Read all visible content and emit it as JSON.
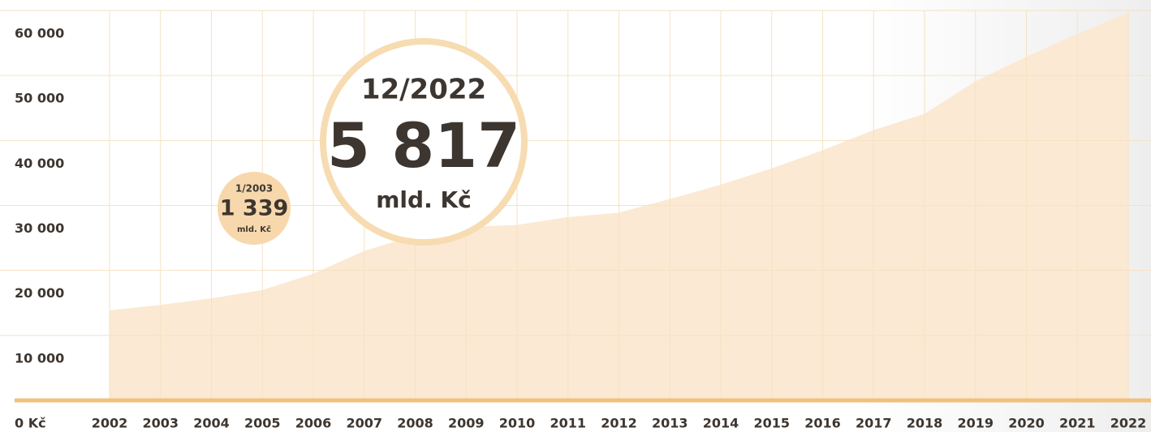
{
  "chart_data": {
    "type": "area",
    "x": [
      2002,
      2003,
      2004,
      2005,
      2006,
      2007,
      2008,
      2009,
      2010,
      2011,
      2012,
      2013,
      2014,
      2015,
      2016,
      2017,
      2018,
      2019,
      2020,
      2021,
      2022
    ],
    "values": [
      13850,
      14700,
      15700,
      17000,
      19500,
      23000,
      25400,
      26700,
      27000,
      28200,
      28900,
      31000,
      33200,
      35700,
      38500,
      41600,
      44100,
      49100,
      52900,
      56400,
      59700
    ],
    "color": "#fbe9d3",
    "xlim": [
      2002,
      2022
    ],
    "xticks": [
      2002,
      2003,
      2004,
      2005,
      2006,
      2007,
      2008,
      2009,
      2010,
      2011,
      2012,
      2013,
      2014,
      2015,
      2016,
      2017,
      2018,
      2019,
      2020,
      2021,
      2022
    ],
    "ylim": [
      0,
      60000
    ],
    "yticks": [
      {
        "value": 0,
        "label": "0 Kč"
      },
      {
        "value": 10000,
        "label": "10 000"
      },
      {
        "value": 20000,
        "label": "20 000"
      },
      {
        "value": 30000,
        "label": "30 000"
      },
      {
        "value": 40000,
        "label": "40 000"
      },
      {
        "value": 50000,
        "label": "50 000"
      },
      {
        "value": 60000,
        "label": "60 000"
      }
    ],
    "grid": true,
    "annotations": [
      {
        "date": "12/2022",
        "amount": "5 817",
        "unit": "mld. Kč"
      },
      {
        "date": "1/2003",
        "amount": "1 339",
        "unit": "mld. Kč"
      }
    ]
  }
}
